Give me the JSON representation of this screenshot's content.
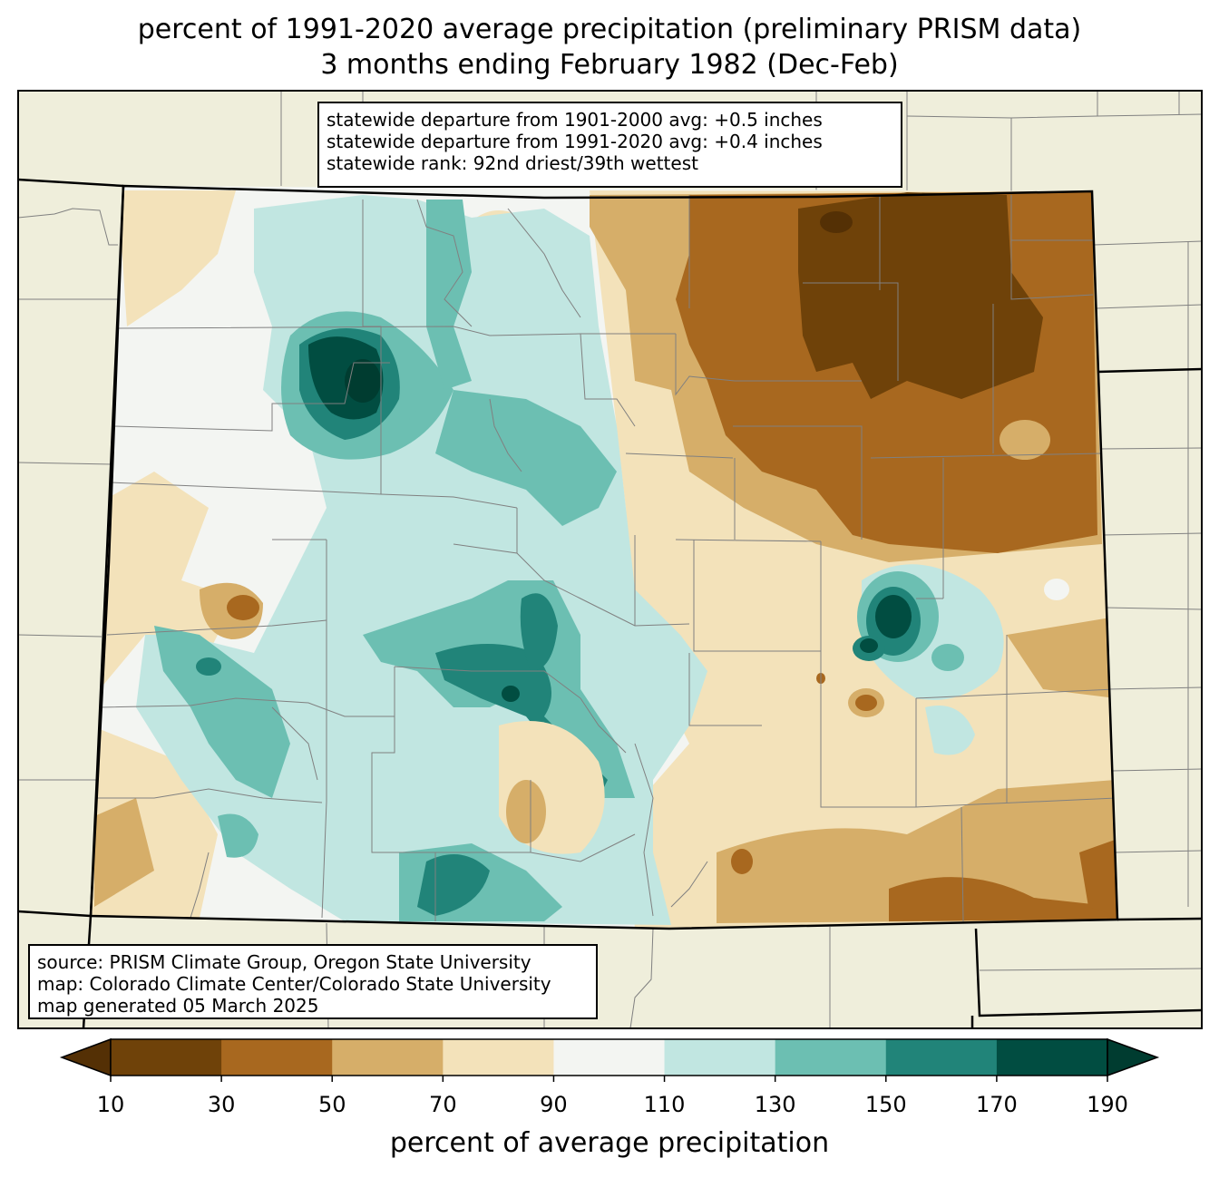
{
  "title": {
    "line1": "percent of 1991-2020 average precipitation (preliminary PRISM data)",
    "line2": "3 months ending February 1982 (Dec-Feb)"
  },
  "stats": {
    "line1": "statewide departure from 1901-2000 avg: +0.5 inches",
    "line2": "statewide departure from 1991-2020 avg: +0.4 inches",
    "line3": "statewide rank: 92nd driest/39th wettest"
  },
  "source": {
    "line1": "source: PRISM Climate Group, Oregon State University",
    "line2": "map: Colorado Climate Center/Colorado State University",
    "line3": "map generated 05 March 2025"
  },
  "colorbar": {
    "label": "percent of average precipitation",
    "ticks": [
      "10",
      "30",
      "50",
      "70",
      "90",
      "110",
      "130",
      "150",
      "170",
      "190"
    ],
    "under_color": "#543005",
    "over_color": "#003c30",
    "colors": [
      "#6f4209",
      "#a8681f",
      "#d6ae69",
      "#f3e2ba",
      "#f3f5f2",
      "#c1e6e1",
      "#6cbfb2",
      "#218479",
      "#014d41"
    ]
  },
  "map_colors": {
    "background": "#efeedb",
    "state_border": "#000000",
    "county_border": "#808080"
  }
}
